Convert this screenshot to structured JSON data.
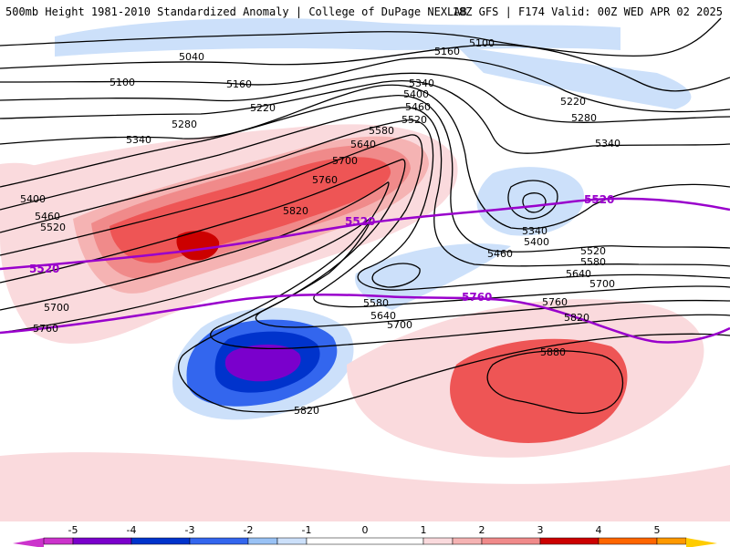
{
  "header": {
    "left": "500mb Height 1981-2010 Standardized Anomaly | College of DuPage NEXLAB",
    "right": "18Z GFS | F174 Valid: 00Z WED APR 02 2025"
  },
  "colors": {
    "neg5": "#cc33cc",
    "neg4": "#7a00cc",
    "neg3": "#0033cc",
    "neg2": "#3366ee",
    "neg1_5": "#99c2f5",
    "neg1": "#cce0fa",
    "pos1": "#fadadd",
    "pos1_5": "#f5b3b3",
    "pos2": "#f08a8a",
    "pos3": "#ee5555",
    "pos4": "#cc0000",
    "pos5": "#ff9900",
    "purple_line": "#9900cc",
    "contour": "#000000"
  },
  "contour_labels": {
    "l5100a": "5100",
    "l5040": "5040",
    "l5100b": "5100",
    "l5160a": "5160",
    "l5160b": "5160",
    "l5220a": "5220",
    "l5220b": "5220",
    "l5280a": "5280",
    "l5280b": "5280",
    "l5340a": "5340",
    "l5340b": "5340",
    "l5340c": "5340",
    "l5340d": "5340",
    "l5400a": "5400",
    "l5400b": "5400",
    "l5400c": "5400",
    "l5460a": "5460",
    "l5460b": "5460",
    "l5460c": "5460",
    "l5520a": "5520",
    "l5520b": "5520",
    "l5520c": "5520",
    "l5580a": "5580",
    "l5580b": "5580",
    "l5580c": "5580",
    "l5640a": "5640",
    "l5640b": "5640",
    "l5640c": "5640",
    "l5700a": "5700",
    "l5700b": "5700",
    "l5700c": "5700",
    "l5700d": "5700",
    "l5760a": "5760",
    "l5760b": "5760",
    "l5760c": "5760",
    "l5820a": "5820",
    "l5820b": "5820",
    "l5820c": "5820",
    "l5880": "5880"
  },
  "purple_labels": {
    "p5520a": "5520",
    "p5520b": "5520",
    "p5520c": "5520",
    "p5760": "5760"
  },
  "colorbar": {
    "ticks": [
      "-5",
      "-4",
      "-3",
      "-2",
      "-1",
      "0",
      "1",
      "2",
      "3",
      "4",
      "5"
    ]
  }
}
